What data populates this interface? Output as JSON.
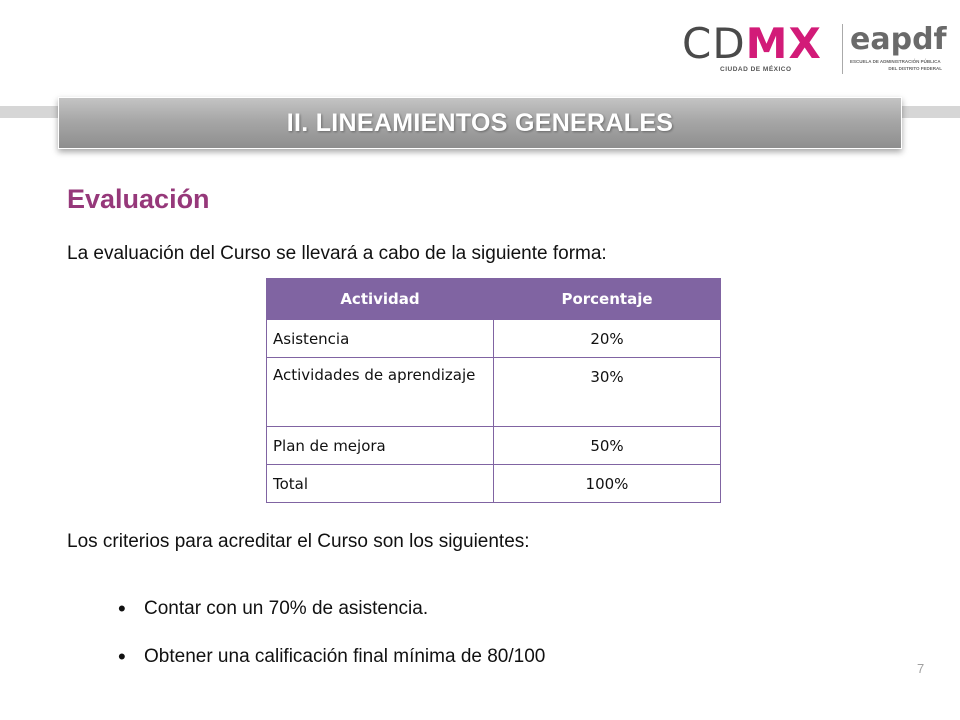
{
  "logo": {
    "cd": "CD",
    "mx": "MX",
    "subtitle": "CIUDAD DE MÉXICO",
    "eapdf": "eapdf",
    "escuela_line1": "ESCUELA DE ADMINISTRACIÓN PÚBLICA",
    "escuela_line2": "DEL DISTRITO FEDERAL"
  },
  "banner": {
    "title": "II. LINEAMIENTOS GENERALES"
  },
  "section": {
    "heading": "Evaluación",
    "intro": "La evaluación del Curso se llevará a cabo de la siguiente forma:"
  },
  "table": {
    "headers": [
      "Actividad",
      "Porcentaje"
    ],
    "rows": [
      {
        "actividad": "Asistencia",
        "porcentaje": "20%"
      },
      {
        "actividad": "Actividades de aprendizaje",
        "porcentaje": "30%"
      },
      {
        "actividad": "Plan de mejora",
        "porcentaje": "50%"
      },
      {
        "actividad": "Total",
        "porcentaje": "100%"
      }
    ]
  },
  "criteria": {
    "intro": "Los criterios para acreditar el Curso son los siguientes:",
    "items": [
      "Contar con un 70% de asistencia.",
      "Obtener una calificación final mínima de 80/100"
    ]
  },
  "page_number": "7",
  "colors": {
    "magenta": "#d21b78",
    "heading_purple": "#96387a",
    "table_purple": "#8064a2"
  }
}
